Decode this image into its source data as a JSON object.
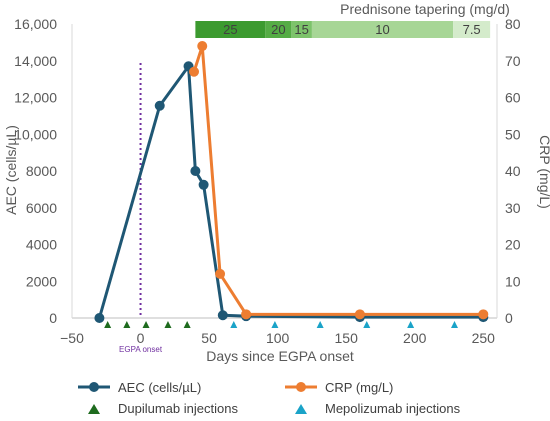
{
  "chart_data": {
    "type": "line",
    "xlabel": "Days since EGPA onset",
    "ylabel_left": "AEC (cells/µL)",
    "ylabel_right": "CRP (mg/L)",
    "xlim": [
      -50,
      260
    ],
    "ylim_left": [
      0,
      16000
    ],
    "ylim_right": [
      0,
      80
    ],
    "x_ticks": [
      "−50",
      "0",
      "50",
      "100",
      "150",
      "200",
      "250"
    ],
    "x_tick_values": [
      -50,
      0,
      50,
      100,
      150,
      200,
      250
    ],
    "y_left_ticks": [
      "0",
      "2000",
      "4000",
      "6000",
      "8000",
      "10,000",
      "12,000",
      "14,000",
      "16,000"
    ],
    "y_left_tick_values": [
      0,
      2000,
      4000,
      6000,
      8000,
      10000,
      12000,
      14000,
      16000
    ],
    "y_right_ticks": [
      "0",
      "10",
      "20",
      "30",
      "40",
      "50",
      "60",
      "70",
      "80"
    ],
    "y_right_tick_values": [
      0,
      10,
      20,
      30,
      40,
      50,
      60,
      70,
      80
    ],
    "grid": false,
    "legend_position": "bottom",
    "series": [
      {
        "name": "AEC (cells/µL)",
        "axis": "left",
        "color": "#1f5774",
        "x": [
          -30,
          14,
          35,
          40,
          46,
          60,
          77,
          160,
          250
        ],
        "y": [
          0,
          11550,
          13700,
          8000,
          7250,
          150,
          100,
          50,
          50
        ]
      },
      {
        "name": "CRP (mg/L)",
        "axis": "right",
        "color": "#ed7d31",
        "x": [
          39,
          45,
          58,
          77,
          160,
          250
        ],
        "y": [
          67,
          74,
          12,
          1,
          1,
          1
        ]
      }
    ],
    "markers": [
      {
        "name": "Dupilumab injections",
        "color": "#1e6b1e",
        "x": [
          -24,
          -10,
          4,
          20,
          34
        ]
      },
      {
        "name": "Mepolizumab injections",
        "color": "#1aa3c8",
        "x": [
          68,
          98,
          131,
          165,
          197,
          229
        ]
      }
    ],
    "onset_line": {
      "x": 0,
      "label": "EGPA onset",
      "color": "#7030a0"
    },
    "prednisone": {
      "title": "Prednisone tapering (mg/d)",
      "segments": [
        {
          "label": "25",
          "x0": 40,
          "x1": 91,
          "color": "#3c9a2f"
        },
        {
          "label": "20",
          "x0": 91,
          "x1": 110,
          "color": "#55ac45"
        },
        {
          "label": "15",
          "x0": 110,
          "x1": 125,
          "color": "#7dc36b"
        },
        {
          "label": "10",
          "x0": 125,
          "x1": 228,
          "color": "#a7d696"
        },
        {
          "label": "7.5",
          "x0": 228,
          "x1": 255,
          "color": "#d4ebcb"
        }
      ]
    }
  }
}
